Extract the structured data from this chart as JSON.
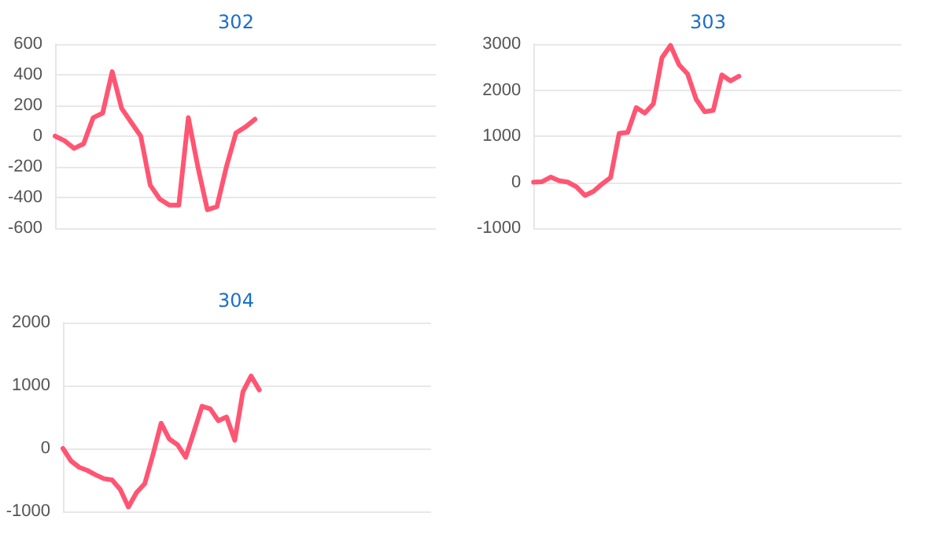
{
  "chart_data": [
    {
      "type": "line",
      "title": "302",
      "categories": [
        null,
        null,
        null,
        null,
        null,
        null,
        null,
        null,
        null,
        null,
        null,
        null,
        null,
        null,
        null,
        null,
        null,
        null,
        null,
        null,
        null,
        null,
        null,
        null,
        null,
        null,
        null,
        null,
        null,
        null,
        null,
        null,
        null,
        null,
        null,
        null,
        null,
        null,
        null,
        null,
        null
      ],
      "series": [
        {
          "color": "#ff5573",
          "values": [
            0,
            -30,
            -80,
            -50,
            120,
            150,
            420,
            180,
            90,
            0,
            -320,
            -410,
            -450,
            -450,
            120,
            -200,
            -480,
            -460,
            -200,
            20,
            60,
            110,
            null,
            null,
            null,
            null,
            null,
            null,
            null,
            null,
            null,
            null,
            null,
            null,
            null,
            null,
            null,
            null,
            null,
            null,
            null
          ]
        }
      ],
      "ylim": [
        -600,
        600
      ],
      "yticks": [
        -600,
        -400,
        -200,
        0,
        200,
        400,
        600
      ],
      "grid": "y",
      "tick_labels": "y",
      "line_style": "solid"
    },
    {
      "type": "line",
      "title": "303",
      "categories": [
        null,
        null,
        null,
        null,
        null,
        null,
        null,
        null,
        null,
        null,
        null,
        null,
        null,
        null,
        null,
        null,
        null,
        null,
        null,
        null,
        null,
        null,
        null,
        null,
        null,
        null,
        null,
        null,
        null,
        null,
        null,
        null,
        null,
        null,
        null,
        null,
        null,
        null,
        null,
        null,
        null,
        null,
        null,
        null
      ],
      "series": [
        {
          "color": "#ff5573",
          "values": [
            0,
            10,
            110,
            30,
            0,
            -100,
            -290,
            -200,
            -40,
            100,
            1060,
            1080,
            1620,
            1500,
            1700,
            2700,
            2970,
            2550,
            2350,
            1800,
            1530,
            1560,
            2330,
            2200,
            2300,
            null,
            null,
            null,
            null,
            null,
            null,
            null,
            null,
            null,
            null,
            null,
            null,
            null,
            null,
            null,
            null,
            null,
            null,
            null
          ]
        }
      ],
      "ylim": [
        -1000,
        3000
      ],
      "yticks": [
        -1000,
        0,
        1000,
        2000,
        3000
      ],
      "grid": "y",
      "tick_labels": "y",
      "line_style": "solid"
    },
    {
      "type": "line",
      "title": "304",
      "categories": [
        null,
        null,
        null,
        null,
        null,
        null,
        null,
        null,
        null,
        null,
        null,
        null,
        null,
        null,
        null,
        null,
        null,
        null,
        null,
        null,
        null,
        null,
        null,
        null,
        null,
        null,
        null,
        null,
        null,
        null,
        null,
        null,
        null,
        null,
        null,
        null,
        null,
        null,
        null,
        null,
        null,
        null,
        null,
        null,
        null,
        null
      ],
      "series": [
        {
          "color": "#ff5573",
          "values": [
            0,
            -200,
            -300,
            -350,
            -420,
            -480,
            -500,
            -650,
            -930,
            -700,
            -560,
            -100,
            400,
            150,
            60,
            -140,
            260,
            670,
            630,
            440,
            500,
            130,
            900,
            1150,
            930,
            null,
            null,
            null,
            null,
            null,
            null,
            null,
            null,
            null,
            null,
            null,
            null,
            null,
            null,
            null,
            null,
            null,
            null,
            null,
            null,
            null
          ]
        }
      ],
      "ylim": [
        -1000,
        2000
      ],
      "yticks": [
        -1000,
        0,
        1000,
        2000
      ],
      "grid": "y",
      "tick_labels": "y",
      "line_style": "solid"
    }
  ]
}
